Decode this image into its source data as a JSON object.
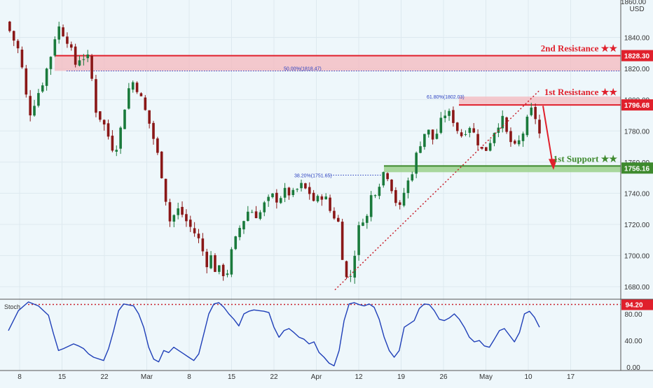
{
  "header": {
    "currency_top": "1860.00",
    "currency": "USD"
  },
  "colors": {
    "background": "#eef7fb",
    "up": "#1a7a3c",
    "down": "#8a1717",
    "resistance": "#e0202c",
    "resistance_zone": "#f4b8bd",
    "support": "#3e8a2e",
    "support_zone": "#9bd18c",
    "stoch_line": "#1f3fb8",
    "dotted": "#c8202c",
    "fib": "#2a3fbf"
  },
  "chart_data": [
    {
      "type": "candlestick",
      "title": "",
      "ylim": [
        1672,
        1864
      ],
      "y_ticks": [
        "1680.00",
        "1700.00",
        "1720.00",
        "1740.00",
        "1760.00",
        "1780.00",
        "1800.00",
        "1820.00",
        "1840.00"
      ],
      "x_ticks": [
        "8",
        "15",
        "22",
        "Mar",
        "8",
        "15",
        "22",
        "Apr",
        "12",
        "19",
        "26",
        "May",
        "10",
        "17"
      ],
      "close_path": [
        [
          0,
          1850
        ],
        [
          3,
          1830
        ],
        [
          5,
          1790
        ],
        [
          8,
          1812
        ],
        [
          10,
          1832
        ],
        [
          11,
          1848
        ],
        [
          13,
          1840
        ],
        [
          15,
          1822
        ],
        [
          16,
          1828
        ],
        [
          18,
          1826
        ],
        [
          19,
          1795
        ],
        [
          21,
          1784
        ],
        [
          23,
          1768
        ],
        [
          24,
          1772
        ],
        [
          26,
          1805
        ],
        [
          27,
          1812
        ],
        [
          28,
          1808
        ],
        [
          29,
          1800
        ],
        [
          31,
          1782
        ],
        [
          33,
          1758
        ],
        [
          35,
          1722
        ],
        [
          37,
          1730
        ],
        [
          39,
          1720
        ],
        [
          41,
          1712
        ],
        [
          43,
          1695
        ],
        [
          44,
          1700
        ],
        [
          45,
          1688
        ],
        [
          46,
          1693
        ],
        [
          47,
          1684
        ],
        [
          48,
          1700
        ],
        [
          50,
          1718
        ],
        [
          52,
          1730
        ],
        [
          54,
          1725
        ],
        [
          55,
          1732
        ],
        [
          57,
          1738
        ],
        [
          58,
          1736
        ],
        [
          60,
          1742
        ],
        [
          61,
          1738
        ],
        [
          63,
          1745
        ],
        [
          65,
          1740
        ],
        [
          66,
          1734
        ],
        [
          68,
          1740
        ],
        [
          69,
          1730
        ],
        [
          71,
          1722
        ],
        [
          72,
          1698
        ],
        [
          73,
          1682
        ],
        [
          74,
          1690
        ],
        [
          75,
          1712
        ],
        [
          76,
          1725
        ],
        [
          77,
          1722
        ],
        [
          78,
          1738
        ],
        [
          79,
          1742
        ],
        [
          80,
          1748
        ],
        [
          81,
          1756
        ],
        [
          82,
          1748
        ],
        [
          83,
          1738
        ],
        [
          84,
          1728
        ],
        [
          85,
          1740
        ],
        [
          86,
          1748
        ],
        [
          87,
          1756
        ],
        [
          88,
          1768
        ],
        [
          89,
          1776
        ],
        [
          90,
          1782
        ],
        [
          91,
          1774
        ],
        [
          92,
          1778
        ],
        [
          93,
          1786
        ],
        [
          94,
          1792
        ],
        [
          95,
          1790
        ],
        [
          96,
          1785
        ],
        [
          97,
          1776
        ],
        [
          98,
          1780
        ],
        [
          99,
          1784
        ],
        [
          100,
          1778
        ],
        [
          101,
          1772
        ],
        [
          102,
          1766
        ],
        [
          103,
          1770
        ],
        [
          104,
          1778
        ],
        [
          105,
          1784
        ],
        [
          106,
          1788
        ],
        [
          107,
          1778
        ],
        [
          108,
          1772
        ],
        [
          109,
          1768
        ],
        [
          110,
          1776
        ],
        [
          111,
          1782
        ],
        [
          112,
          1794
        ],
        [
          113,
          1790
        ],
        [
          114,
          1778
        ]
      ],
      "annotations": {
        "second_resistance": {
          "label": "2nd Resistance ★★",
          "price": "1828.30",
          "zone": [
            1818.5,
            1828.3
          ],
          "fib_label": "50.00%(1818.47)"
        },
        "first_resistance": {
          "label": "1st Resistance ★★",
          "price": "1796.68",
          "zone": [
            1796.68,
            1802.03
          ],
          "fib_label": "61.80%(1802.03)"
        },
        "first_support": {
          "label": "1st Support ★★",
          "price": "1756.16",
          "zone": [
            1753.5,
            1757.5
          ],
          "fib_label": "38.20%(1751.65)"
        }
      }
    },
    {
      "type": "line",
      "title": "Stoch",
      "ylim": [
        -5,
        100
      ],
      "y_ticks": [
        "0.00",
        "40.00",
        "80.00"
      ],
      "level": "94.20",
      "series": [
        {
          "values": [
            [
              0,
              55
            ],
            [
              2,
              85
            ],
            [
              4,
              98
            ],
            [
              6,
              92
            ],
            [
              8,
              78
            ],
            [
              9,
              50
            ],
            [
              10,
              25
            ],
            [
              11,
              28
            ],
            [
              13,
              35
            ],
            [
              14,
              32
            ],
            [
              15,
              28
            ],
            [
              16,
              20
            ],
            [
              17,
              15
            ],
            [
              19,
              10
            ],
            [
              20,
              28
            ],
            [
              21,
              55
            ],
            [
              22,
              85
            ],
            [
              23,
              95
            ],
            [
              25,
              92
            ],
            [
              26,
              80
            ],
            [
              27,
              60
            ],
            [
              28,
              30
            ],
            [
              29,
              12
            ],
            [
              30,
              8
            ],
            [
              31,
              25
            ],
            [
              32,
              22
            ],
            [
              33,
              30
            ],
            [
              34,
              25
            ],
            [
              35,
              20
            ],
            [
              36,
              15
            ],
            [
              37,
              10
            ],
            [
              38,
              20
            ],
            [
              39,
              50
            ],
            [
              40,
              80
            ],
            [
              41,
              95
            ],
            [
              42,
              97
            ],
            [
              43,
              90
            ],
            [
              44,
              80
            ],
            [
              45,
              72
            ],
            [
              46,
              62
            ],
            [
              47,
              80
            ],
            [
              48,
              84
            ],
            [
              49,
              86
            ],
            [
              50,
              85
            ],
            [
              51,
              84
            ],
            [
              52,
              82
            ],
            [
              53,
              60
            ],
            [
              54,
              45
            ],
            [
              55,
              55
            ],
            [
              56,
              58
            ],
            [
              57,
              52
            ],
            [
              58,
              45
            ],
            [
              59,
              42
            ],
            [
              60,
              35
            ],
            [
              61,
              38
            ],
            [
              62,
              22
            ],
            [
              63,
              15
            ],
            [
              64,
              6
            ],
            [
              65,
              2
            ],
            [
              66,
              25
            ],
            [
              67,
              70
            ],
            [
              68,
              95
            ],
            [
              69,
              97
            ],
            [
              70,
              94
            ],
            [
              71,
              92
            ],
            [
              72,
              95
            ],
            [
              73,
              90
            ],
            [
              74,
              72
            ],
            [
              75,
              45
            ],
            [
              76,
              25
            ],
            [
              77,
              15
            ],
            [
              78,
              25
            ],
            [
              79,
              60
            ],
            [
              80,
              65
            ],
            [
              81,
              70
            ],
            [
              82,
              88
            ],
            [
              83,
              95
            ],
            [
              84,
              94
            ],
            [
              85,
              85
            ],
            [
              86,
              72
            ],
            [
              87,
              70
            ],
            [
              88,
              74
            ],
            [
              89,
              80
            ],
            [
              90,
              72
            ],
            [
              91,
              60
            ],
            [
              92,
              45
            ],
            [
              93,
              38
            ],
            [
              94,
              40
            ],
            [
              95,
              32
            ],
            [
              96,
              30
            ],
            [
              97,
              42
            ],
            [
              98,
              55
            ],
            [
              99,
              58
            ],
            [
              100,
              48
            ],
            [
              101,
              38
            ],
            [
              102,
              52
            ],
            [
              103,
              80
            ],
            [
              104,
              84
            ],
            [
              105,
              75
            ],
            [
              106,
              60
            ]
          ]
        }
      ]
    }
  ]
}
